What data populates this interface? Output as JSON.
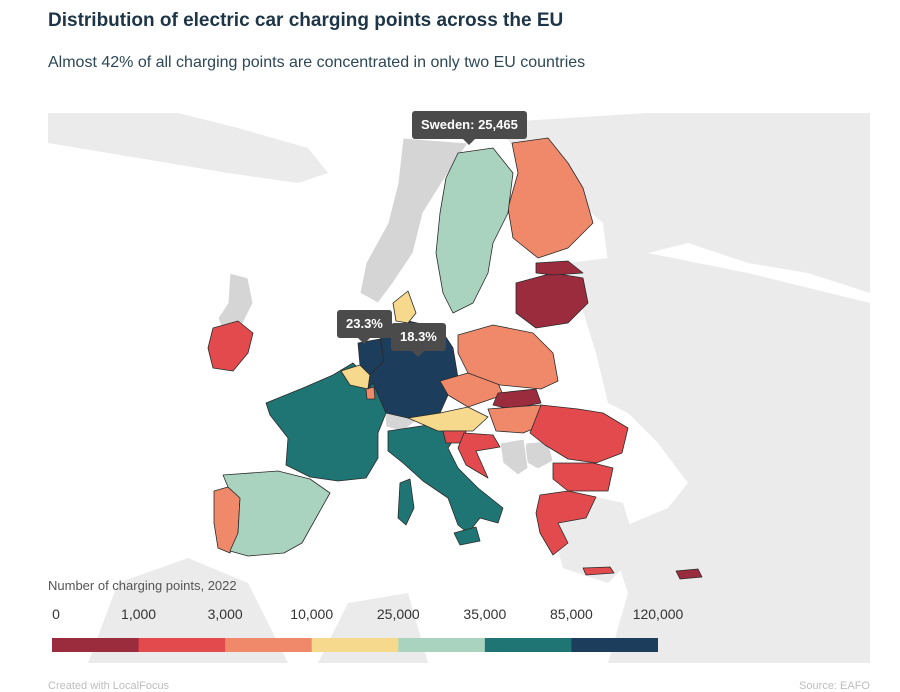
{
  "title": "Distribution of electric car charging points across the EU",
  "subtitle": "Almost 42% of all charging points are concentrated in only two EU countries",
  "tooltips": {
    "sweden": "Sweden: 25,465",
    "netherlands": "23.3%",
    "germany": "18.3%"
  },
  "legend": {
    "title": "Number of charging points, 2022",
    "thresholds": [
      "0",
      "1,000",
      "3,000",
      "10,000",
      "25,000",
      "35,000",
      "85,000",
      "120,000"
    ],
    "colors": [
      "#9b2c3e",
      "#e24a4e",
      "#f0896a",
      "#f6d98c",
      "#a9d3bf",
      "#1f7474",
      "#1c3e5c"
    ]
  },
  "footer": {
    "left": "Created with LocalFocus",
    "right": "Source: EAFO"
  },
  "map_colors": {
    "background_land": "#ebebeb",
    "no_data": "#d5d5d5",
    "border": "#2b2b2b"
  }
}
